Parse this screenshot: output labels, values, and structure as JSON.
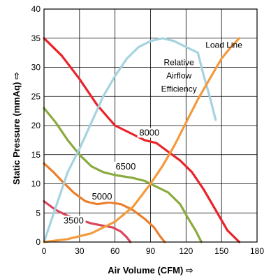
{
  "chart_data": {
    "type": "line",
    "xlabel": "Air Volume (CFM)",
    "ylabel": "Static Pressure (mmAq)",
    "xlim": [
      0,
      180
    ],
    "ylim": [
      0,
      40
    ],
    "xticks": [
      "0",
      "30",
      "60",
      "90",
      "120",
      "150",
      "180"
    ],
    "yticks": [
      "0",
      "5",
      "10",
      "15",
      "20",
      "25",
      "30",
      "35",
      "40"
    ],
    "grid": true,
    "axis_arrow_glyph": "⇨",
    "series": [
      {
        "name": "8000",
        "color": "#e8242a",
        "points": [
          [
            0,
            35
          ],
          [
            15,
            32
          ],
          [
            30,
            28
          ],
          [
            45,
            23.5
          ],
          [
            60,
            20
          ],
          [
            75,
            18.5
          ],
          [
            85,
            17.5
          ],
          [
            95,
            17
          ],
          [
            105,
            15.5
          ],
          [
            115,
            14
          ],
          [
            125,
            12
          ],
          [
            135,
            9
          ],
          [
            145,
            5.5
          ],
          [
            155,
            2
          ],
          [
            165,
            0
          ]
        ]
      },
      {
        "name": "6500",
        "color": "#8aab3e",
        "points": [
          [
            0,
            23
          ],
          [
            10,
            20.5
          ],
          [
            20,
            17.5
          ],
          [
            30,
            15
          ],
          [
            40,
            13
          ],
          [
            50,
            12
          ],
          [
            60,
            11.5
          ],
          [
            75,
            11
          ],
          [
            85,
            10.5
          ],
          [
            95,
            9.5
          ],
          [
            105,
            8.5
          ],
          [
            115,
            6.5
          ],
          [
            122,
            4
          ],
          [
            128,
            2
          ],
          [
            133,
            0
          ]
        ]
      },
      {
        "name": "5000",
        "color": "#ec7e2a",
        "points": [
          [
            0,
            13.5
          ],
          [
            8,
            12
          ],
          [
            15,
            10.5
          ],
          [
            25,
            8.5
          ],
          [
            35,
            7
          ],
          [
            45,
            6.5
          ],
          [
            55,
            6.8
          ],
          [
            65,
            6.5
          ],
          [
            75,
            5.5
          ],
          [
            85,
            4
          ],
          [
            93,
            2.5
          ],
          [
            98,
            1
          ],
          [
            102,
            0
          ]
        ]
      },
      {
        "name": "3500",
        "color": "#d8475c",
        "points": [
          [
            0,
            7
          ],
          [
            10,
            5.5
          ],
          [
            20,
            4.5
          ],
          [
            30,
            3.8
          ],
          [
            40,
            3.2
          ],
          [
            50,
            2.8
          ],
          [
            58,
            2.5
          ],
          [
            65,
            1.8
          ],
          [
            70,
            0.8
          ],
          [
            73,
            0
          ]
        ]
      },
      {
        "name": "Relative Airflow Efficiency",
        "color": "#a5d3df",
        "points": [
          [
            0,
            0
          ],
          [
            10,
            6
          ],
          [
            20,
            12
          ],
          [
            30,
            16
          ],
          [
            40,
            20.5
          ],
          [
            50,
            25
          ],
          [
            60,
            28.5
          ],
          [
            70,
            31.5
          ],
          [
            80,
            33.5
          ],
          [
            90,
            34.5
          ],
          [
            100,
            35
          ],
          [
            110,
            34.5
          ],
          [
            120,
            33.5
          ],
          [
            130,
            32.5
          ],
          [
            135,
            28.5
          ],
          [
            140,
            25
          ],
          [
            145,
            21
          ]
        ]
      },
      {
        "name": "Load Line",
        "color": "#f39a3c",
        "points": [
          [
            0,
            0
          ],
          [
            20,
            0.5
          ],
          [
            40,
            1.5
          ],
          [
            60,
            3.5
          ],
          [
            75,
            6
          ],
          [
            90,
            10
          ],
          [
            100,
            13
          ],
          [
            110,
            16.5
          ],
          [
            120,
            20.5
          ],
          [
            130,
            24.5
          ],
          [
            140,
            28
          ],
          [
            150,
            31.5
          ],
          [
            158,
            33.5
          ],
          [
            165,
            35
          ]
        ]
      }
    ],
    "annotations": [
      {
        "text": "8000",
        "x": 89,
        "y": 18.4
      },
      {
        "text": "6500",
        "x": 69,
        "y": 12.6
      },
      {
        "text": "5000",
        "x": 49,
        "y": 7.4
      },
      {
        "text": "3500",
        "x": 25,
        "y": 3.3
      },
      {
        "text": "Relative",
        "x": 114,
        "y": 30.5
      },
      {
        "text": "Airflow",
        "x": 114,
        "y": 28.2
      },
      {
        "text": "Efficiency",
        "x": 114,
        "y": 25.9
      },
      {
        "text": "Load Line",
        "x": 152,
        "y": 33.5
      }
    ]
  }
}
